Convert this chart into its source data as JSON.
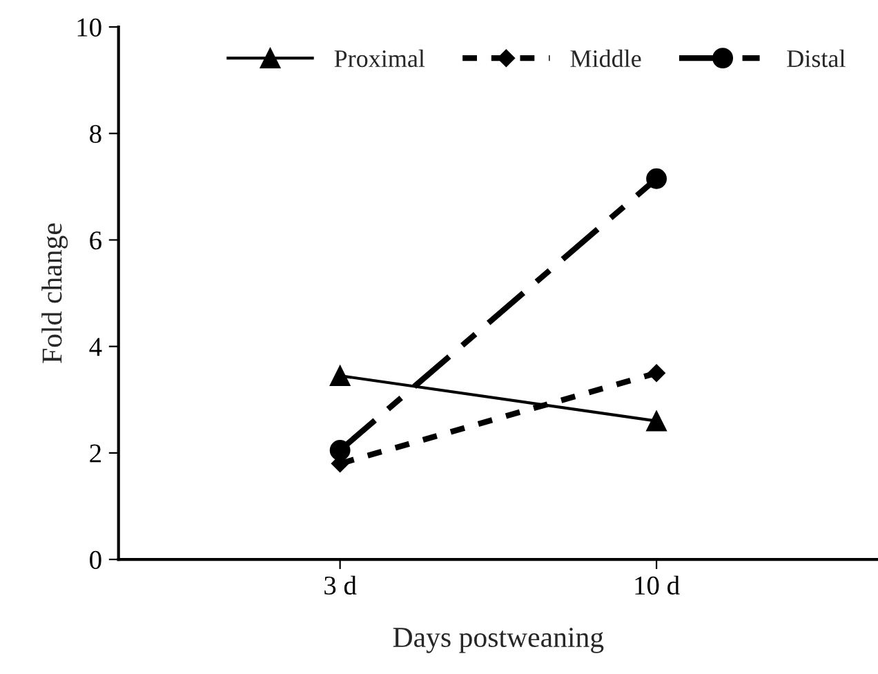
{
  "chart_data": {
    "type": "line",
    "xlabel": "Days postweaning",
    "ylabel": "Fold change",
    "categories": [
      "3 d",
      "10 d"
    ],
    "series": [
      {
        "name": "Proximal",
        "color": "#000000",
        "values": [
          3.45,
          2.6
        ],
        "marker": "triangle",
        "line_style": "solid"
      },
      {
        "name": "Middle",
        "color": "#000000",
        "values": [
          1.8,
          3.5
        ],
        "marker": "diamond",
        "line_style": "dotted"
      },
      {
        "name": "Distal",
        "color": "#000000",
        "values": [
          2.05,
          7.15
        ],
        "marker": "circle",
        "line_style": "dashed"
      }
    ],
    "ylim": [
      0,
      10
    ],
    "yticks": [
      0,
      2,
      4,
      6,
      8,
      10
    ],
    "grid": false,
    "legend": "top"
  }
}
